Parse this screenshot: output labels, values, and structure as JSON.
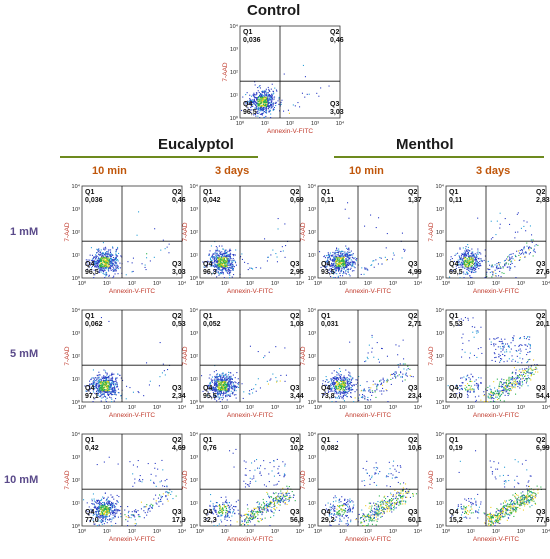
{
  "header": {
    "control_title": "Control",
    "eucalyptol_title": "Eucalyptol",
    "menthol_title": "Menthol",
    "time_10min": "10 min",
    "time_3days": "3 days",
    "row_1mM": "1 mM",
    "row_5mM": "5 mM",
    "row_10mM": "10 mM"
  },
  "colors": {
    "group_rule": "#6d8a1e",
    "time_label": "#c0560a",
    "row_label": "#5a4a8a",
    "axis_label": "#c0392b"
  },
  "chart_data": {
    "type": "scatter",
    "description_axes": "flow cytometry density dot plots, quadrant gates",
    "xlabel": "Annexin-V-FITC",
    "ylabel": "7-AAD",
    "x_scale": "log",
    "y_scale": "log",
    "xlim": [
      1,
      10000
    ],
    "ylim": [
      1,
      10000
    ],
    "tick_labels": [
      "10⁰",
      "10¹",
      "10²",
      "10³",
      "10⁴"
    ],
    "quadrant_names": [
      "Q1",
      "Q2",
      "Q3",
      "Q4"
    ],
    "panels": [
      {
        "id": "control",
        "treatment": "Control",
        "q1": "0,036",
        "q2": "0,46",
        "q3": "3,03",
        "q4": "96,5"
      },
      {
        "id": "euc-1mM-10min",
        "treatment": "Eucalyptol",
        "conc": "1 mM",
        "time": "10 min",
        "q1": "0,036",
        "q2": "0,46",
        "q3": "3,03",
        "q4": "96,5"
      },
      {
        "id": "euc-1mM-3days",
        "treatment": "Eucalyptol",
        "conc": "1 mM",
        "time": "3 days",
        "q1": "0,042",
        "q2": "0,69",
        "q3": "2,95",
        "q4": "96,3"
      },
      {
        "id": "men-1mM-10min",
        "treatment": "Menthol",
        "conc": "1 mM",
        "time": "10 min",
        "q1": "0,11",
        "q2": "1,37",
        "q3": "4,99",
        "q4": "93,5"
      },
      {
        "id": "men-1mM-3days",
        "treatment": "Menthol",
        "conc": "1 mM",
        "time": "3 days",
        "q1": "0,11",
        "q2": "2,83",
        "q3": "27,6",
        "q4": "69,5"
      },
      {
        "id": "euc-5mM-10min",
        "treatment": "Eucalyptol",
        "conc": "5 mM",
        "time": "10 min",
        "q1": "0,062",
        "q2": "0,53",
        "q3": "2,34",
        "q4": "97,1"
      },
      {
        "id": "euc-5mM-3days",
        "treatment": "Eucalyptol",
        "conc": "5 mM",
        "time": "3 days",
        "q1": "0,052",
        "q2": "1,03",
        "q3": "3,44",
        "q4": "95,5"
      },
      {
        "id": "men-5mM-10min",
        "treatment": "Menthol",
        "conc": "5 mM",
        "time": "10 min",
        "q1": "0,031",
        "q2": "2,71",
        "q3": "23,4",
        "q4": "73,8"
      },
      {
        "id": "men-5mM-3days",
        "treatment": "Menthol",
        "conc": "5 mM",
        "time": "3 days",
        "q1": "5,53",
        "q2": "20,1",
        "q3": "54,4",
        "q4": "20,0"
      },
      {
        "id": "euc-10mM-10min",
        "treatment": "Eucalyptol",
        "conc": "10 mM",
        "time": "10 min",
        "q1": "0,42",
        "q2": "4,69",
        "q3": "17,9",
        "q4": "77,0"
      },
      {
        "id": "euc-10mM-3days",
        "treatment": "Eucalyptol",
        "conc": "10 mM",
        "time": "3 days",
        "q1": "0,76",
        "q2": "10,2",
        "q3": "56,8",
        "q4": "32,3"
      },
      {
        "id": "men-10mM-10min",
        "treatment": "Menthol",
        "conc": "10 mM",
        "time": "10 min",
        "q1": "0,082",
        "q2": "10,6",
        "q3": "60,1",
        "q4": "29,2"
      },
      {
        "id": "men-10mM-3days",
        "treatment": "Menthol",
        "conc": "10 mM",
        "time": "3 days",
        "q1": "0,19",
        "q2": "6,99",
        "q3": "77,6",
        "q4": "15,2"
      }
    ]
  }
}
